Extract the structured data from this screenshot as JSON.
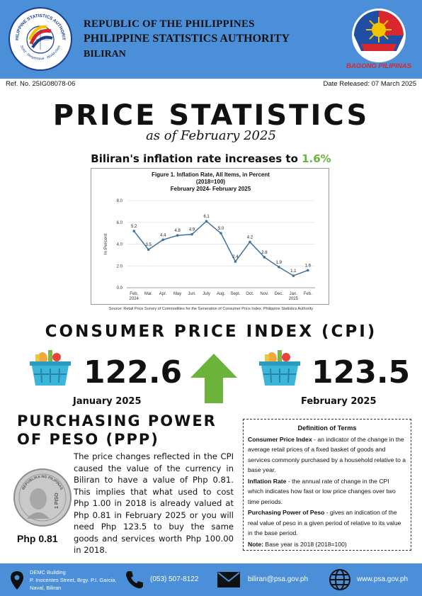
{
  "header": {
    "republic": "REPUBLIC OF THE PHILIPPINES",
    "agency": "PHILIPPINE STATISTICS AUTHORITY",
    "province": "BILIRAN",
    "psa_logo_text": "PHILIPPINE STATISTICS AUTHORITY",
    "psa_logo_motto": "Solid · Responsive · World-class",
    "right_logo_text": "BAGONG PILIPINAS"
  },
  "meta": {
    "ref_no": "Ref. No. 25IG08078-06",
    "date_released": "Date Released: 07 March 2025"
  },
  "title": "PRICE STATISTICS",
  "subtitle": "as of February 2025",
  "headline": {
    "text": "Biliran's inflation rate increases to ",
    "value": "1.6%"
  },
  "chart_data": {
    "type": "line",
    "title": "Figure 1. Inflation Rate, All Items, in Percent",
    "subtitle_line1": "(2018=100)",
    "subtitle_line2": "February 2024- February 2025",
    "ylabel": "In Percent",
    "ylim": [
      0,
      8
    ],
    "yticks": [
      "0.0",
      "2.0",
      "4.0",
      "6.0",
      "8.0"
    ],
    "categories": [
      "Feb. 2024",
      "Mar.",
      "Apr.",
      "May",
      "Jun.",
      "July",
      "Aug.",
      "Sept.",
      "Oct.",
      "Nov.",
      "Dec.",
      "Jan. 2025",
      "Feb."
    ],
    "values": [
      5.2,
      3.5,
      4.4,
      4.8,
      4.9,
      6.1,
      5.0,
      2.4,
      4.2,
      2.8,
      1.9,
      1.1,
      1.6
    ],
    "line_color": "#41719c",
    "grid": true
  },
  "source": "Source: Retail Price Survey of Commodities for the Generation of Consumer Price Index, Philippine Statistics Authority",
  "cpi": {
    "title": "CONSUMER PRICE INDEX (CPI)",
    "jan_value": "122.6",
    "jan_label": "January 2025",
    "feb_value": "123.5",
    "feb_label": "February 2025",
    "arrow_color": "#6bb33a"
  },
  "ppp": {
    "title_line1": "PURCHASING POWER",
    "title_line2": "OF PESO (PPP)",
    "body": "The price changes reflected in the CPI caused the value of the currency in Biliran to have a value of Php 0.81. This implies that what used to cost Php 1.00 in 2018 is already valued at Php 0.81 in February 2025 or you will need Php 123.5 to buy the same goods and services worth Php 100.00 in 2018.",
    "coin_value": "Php 0.81",
    "coin_text": "REPUBLIKA NG PILIPINAS",
    "coin_denom": "1 PISO"
  },
  "terms": {
    "heading": "Definition of Terms",
    "cpi_term": "Consumer Price Index",
    "cpi_def": " - an indicator of the change in the average retail prices of a fixed basket of goods and services commonly purchased by a household relative to a base year.",
    "ir_term": "Inflation Rate",
    "ir_def": " - the annual rate of change in the CPI which indicates how fast or low price changes over two time periods.",
    "ppp_term": "Purchasing Power of Peso",
    "ppp_def": " - gives an indication of the real value of peso in a given period of relative to its value in the base period.",
    "note_term": "Note:",
    "note_def": " Base year is 2018 (2018=100)"
  },
  "footer": {
    "address_line1": "DEMC Building",
    "address_line2": "P. Inocentes Street, Brgy. P.I. Garcia,",
    "address_line3": "Naval, Biliran",
    "phone": "(053) 507-8122",
    "email": "biliran@psa.gov.ph",
    "website": "www.psa.gov.ph"
  }
}
